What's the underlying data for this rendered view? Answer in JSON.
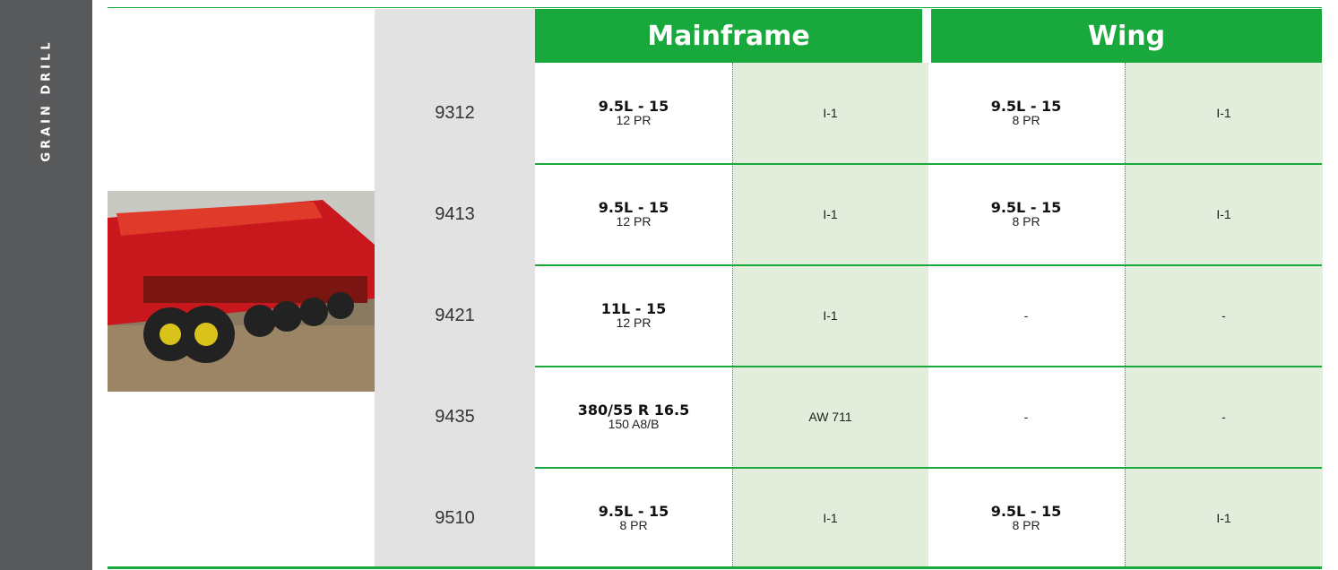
{
  "sidebar_label": "GRAIN DRILL",
  "table": {
    "headers": [
      "Mainframe",
      "Wing"
    ],
    "rows": [
      {
        "model": "9312",
        "main_tire": "9.5L - 15",
        "main_ply": "12 PR",
        "main_type": "I-1",
        "wing_tire": "9.5L - 15",
        "wing_ply": "8 PR",
        "wing_type": "I-1"
      },
      {
        "model": "9413",
        "main_tire": "9.5L - 15",
        "main_ply": "12 PR",
        "main_type": "I-1",
        "wing_tire": "9.5L - 15",
        "wing_ply": "8 PR",
        "wing_type": "I-1"
      },
      {
        "model": "9421",
        "main_tire": "11L - 15",
        "main_ply": "12 PR",
        "main_type": "I-1",
        "wing_tire": "-",
        "wing_type": "-"
      },
      {
        "model": "9435",
        "main_tire": "380/55 R 16.5",
        "main_ply": "150 A8/B",
        "main_type": "AW 711",
        "wing_tire": "-",
        "wing_type": "-"
      },
      {
        "model": "9510",
        "main_tire": "9.5L - 15",
        "main_ply": "8 PR",
        "main_type": "I-1",
        "wing_tire": "9.5L - 15",
        "wing_ply": "8 PR",
        "wing_type": "I-1"
      }
    ]
  }
}
